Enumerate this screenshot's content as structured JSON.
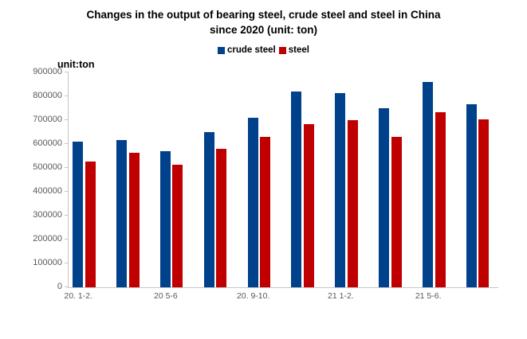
{
  "title": {
    "line1": "Changes in the output of bearing steel, crude steel and steel in China",
    "line2": "since 2020 (unit: ton)"
  },
  "unit_label": "unit:ton",
  "legend": [
    {
      "label": "crude steel",
      "color": "#00418C"
    },
    {
      "label": "steel",
      "color": "#C00000"
    }
  ],
  "chart_data": {
    "type": "bar",
    "title": "Changes in the output of bearing steel, crude steel and steel in China since 2020 (unit: ton)",
    "unit_annotation": "unit:ton",
    "categories": [
      "20. 1-2.",
      "",
      "20 5-6",
      "",
      "20. 9-10.",
      "",
      "21 1-2.",
      "",
      "21 5-6.",
      ""
    ],
    "series": [
      {
        "name": "crude steel",
        "color": "#00418C",
        "values": [
          610000,
          614000,
          567000,
          648000,
          710000,
          820000,
          812000,
          750000,
          858000,
          764000
        ]
      },
      {
        "name": "steel",
        "color": "#C00000",
        "values": [
          525000,
          563000,
          512000,
          578000,
          627000,
          681000,
          697000,
          630000,
          733000,
          701000
        ]
      }
    ],
    "ylabel": "",
    "xlabel": "",
    "ylim": [
      0,
      900000
    ],
    "y_tick_step": 100000,
    "y_tick_labels": [
      "0",
      "100000",
      "200000",
      "300000",
      "400000",
      "500000",
      "600000",
      "700000",
      "800000",
      "900000"
    ],
    "grid": false,
    "legend_position": "top-center",
    "axis_color": "#c6c6c6",
    "tick_text_color": "#595959"
  }
}
